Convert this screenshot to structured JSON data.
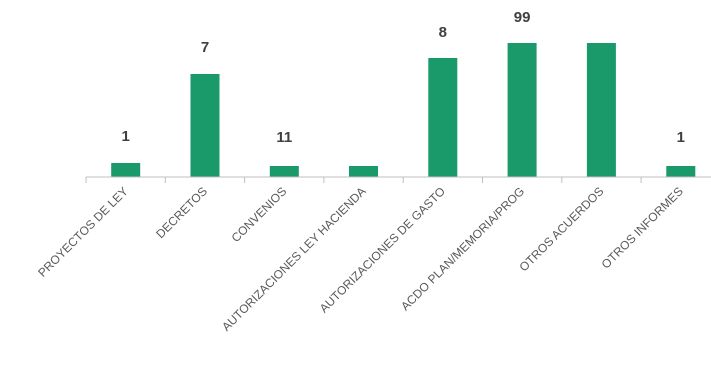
{
  "chart_data": {
    "type": "bar",
    "title": "",
    "xlabel": "",
    "ylabel": "",
    "categories": [
      "PROYECTOS DE LEY",
      "DECRETOS",
      "CONVENIOS",
      "AUTORIZACIONES LEY HACIENDA",
      "AUTORIZACIONES DE GASTO",
      "ACDO PLAN/MEMORIA/PROG",
      "OTROS ACUERDOS",
      "OTROS INFORMES"
    ],
    "values": [
      1,
      7,
      11,
      null,
      8,
      99,
      null,
      1
    ],
    "data_labels": [
      "1",
      "7",
      "11",
      "",
      "8",
      "99",
      "",
      "1"
    ],
    "bar_color": "#1a9a6a",
    "axis_color": "#bfbfbf",
    "grid": false,
    "legend": "none"
  }
}
